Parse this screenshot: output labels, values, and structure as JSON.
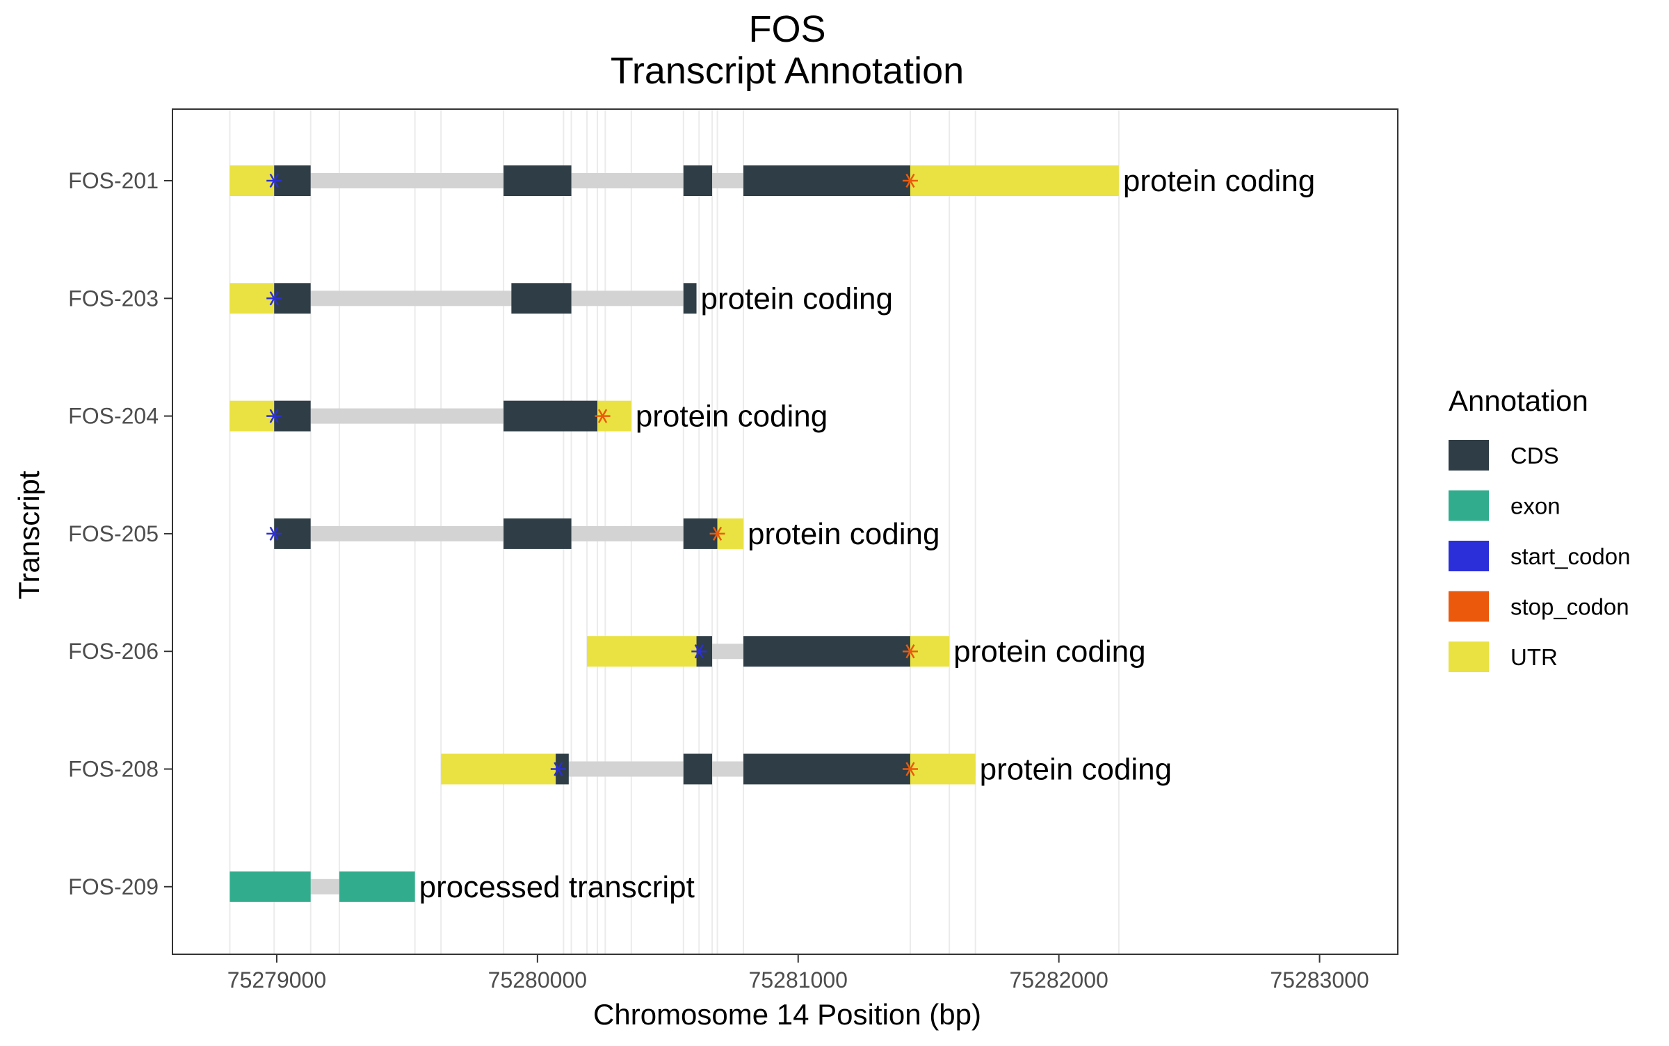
{
  "chart_data": {
    "type": "gene-track",
    "title": "FOS",
    "subtitle": "Transcript Annotation",
    "xlabel": "Chromosome 14 Position (bp)",
    "ylabel": "Transcript",
    "xlim": [
      75278600,
      75283300
    ],
    "x_ticks": [
      75279000,
      75280000,
      75281000,
      75282000,
      75283000
    ],
    "x_tick_labels": [
      "75279000",
      "75280000",
      "75281000",
      "75282000",
      "75283000"
    ],
    "grid": true,
    "vertical_gridlines": [
      75278820,
      75278990,
      75279130,
      75279240,
      75279530,
      75279630,
      75279870,
      75280100,
      75280130,
      75280190,
      75280230,
      75280260,
      75280360,
      75280560,
      75280620,
      75280670,
      75280690,
      75280790,
      75281430,
      75281580,
      75281680,
      75282230
    ],
    "legend": {
      "title": "Annotation",
      "position": "right",
      "items": [
        {
          "label": "CDS",
          "color": "#2f3d46"
        },
        {
          "label": "exon",
          "color": "#31ad8d"
        },
        {
          "label": "start_codon",
          "color": "#2b2fd9"
        },
        {
          "label": "stop_codon",
          "color": "#eb5a0c"
        },
        {
          "label": "UTR",
          "color": "#eae242"
        }
      ]
    },
    "colors": {
      "intron": "#d3d3d3",
      "CDS": "#2f3d46",
      "exon": "#31ad8d",
      "start_codon": "#2b2fd9",
      "stop_codon": "#eb5a0c",
      "UTR": "#eae242",
      "grid": "#ebebeb",
      "panel_border": "#333333"
    },
    "transcripts": [
      {
        "name": "FOS-209",
        "biotype": "processed transcript",
        "start": 75278820,
        "end": 75279530,
        "features": [
          {
            "type": "exon",
            "start": 75278820,
            "end": 75279130
          },
          {
            "type": "exon",
            "start": 75279240,
            "end": 75279530
          }
        ],
        "codons": []
      },
      {
        "name": "FOS-208",
        "biotype": "protein coding",
        "start": 75279630,
        "end": 75281680,
        "features": [
          {
            "type": "UTR",
            "start": 75279630,
            "end": 75280070
          },
          {
            "type": "CDS",
            "start": 75280070,
            "end": 75280120
          },
          {
            "type": "CDS",
            "start": 75280560,
            "end": 75280670
          },
          {
            "type": "CDS",
            "start": 75280790,
            "end": 75281430
          },
          {
            "type": "UTR",
            "start": 75281430,
            "end": 75281680
          }
        ],
        "codons": [
          {
            "type": "start_codon",
            "pos": 75280080
          },
          {
            "type": "stop_codon",
            "pos": 75281430
          }
        ]
      },
      {
        "name": "FOS-206",
        "biotype": "protein coding",
        "start": 75280190,
        "end": 75281580,
        "features": [
          {
            "type": "UTR",
            "start": 75280190,
            "end": 75280610
          },
          {
            "type": "CDS",
            "start": 75280610,
            "end": 75280670
          },
          {
            "type": "CDS",
            "start": 75280790,
            "end": 75281430
          },
          {
            "type": "UTR",
            "start": 75281430,
            "end": 75281580
          }
        ],
        "codons": [
          {
            "type": "start_codon",
            "pos": 75280620
          },
          {
            "type": "stop_codon",
            "pos": 75281430
          }
        ]
      },
      {
        "name": "FOS-205",
        "biotype": "protein coding",
        "start": 75278990,
        "end": 75280790,
        "features": [
          {
            "type": "CDS",
            "start": 75278990,
            "end": 75279130
          },
          {
            "type": "CDS",
            "start": 75279870,
            "end": 75280130
          },
          {
            "type": "CDS",
            "start": 75280560,
            "end": 75280690
          },
          {
            "type": "UTR",
            "start": 75280690,
            "end": 75280790
          }
        ],
        "codons": [
          {
            "type": "start_codon",
            "pos": 75278990
          },
          {
            "type": "stop_codon",
            "pos": 75280690
          }
        ]
      },
      {
        "name": "FOS-204",
        "biotype": "protein coding",
        "start": 75278820,
        "end": 75280360,
        "features": [
          {
            "type": "UTR",
            "start": 75278820,
            "end": 75278990
          },
          {
            "type": "CDS",
            "start": 75278990,
            "end": 75279130
          },
          {
            "type": "CDS",
            "start": 75279870,
            "end": 75280230
          },
          {
            "type": "UTR",
            "start": 75280230,
            "end": 75280360
          }
        ],
        "codons": [
          {
            "type": "start_codon",
            "pos": 75278990
          },
          {
            "type": "stop_codon",
            "pos": 75280250
          }
        ]
      },
      {
        "name": "FOS-203",
        "biotype": "protein coding",
        "start": 75278820,
        "end": 75280610,
        "features": [
          {
            "type": "UTR",
            "start": 75278820,
            "end": 75278990
          },
          {
            "type": "CDS",
            "start": 75278990,
            "end": 75279130
          },
          {
            "type": "CDS",
            "start": 75279900,
            "end": 75280130
          },
          {
            "type": "CDS",
            "start": 75280560,
            "end": 75280610
          }
        ],
        "codons": [
          {
            "type": "start_codon",
            "pos": 75278990
          }
        ]
      },
      {
        "name": "FOS-201",
        "biotype": "protein coding",
        "start": 75278820,
        "end": 75282230,
        "features": [
          {
            "type": "UTR",
            "start": 75278820,
            "end": 75278990
          },
          {
            "type": "CDS",
            "start": 75278990,
            "end": 75279130
          },
          {
            "type": "CDS",
            "start": 75279870,
            "end": 75280130
          },
          {
            "type": "CDS",
            "start": 75280560,
            "end": 75280670
          },
          {
            "type": "CDS",
            "start": 75280790,
            "end": 75281430
          },
          {
            "type": "UTR",
            "start": 75281430,
            "end": 75282230
          }
        ],
        "codons": [
          {
            "type": "start_codon",
            "pos": 75278990
          },
          {
            "type": "stop_codon",
            "pos": 75281430
          }
        ]
      }
    ]
  }
}
